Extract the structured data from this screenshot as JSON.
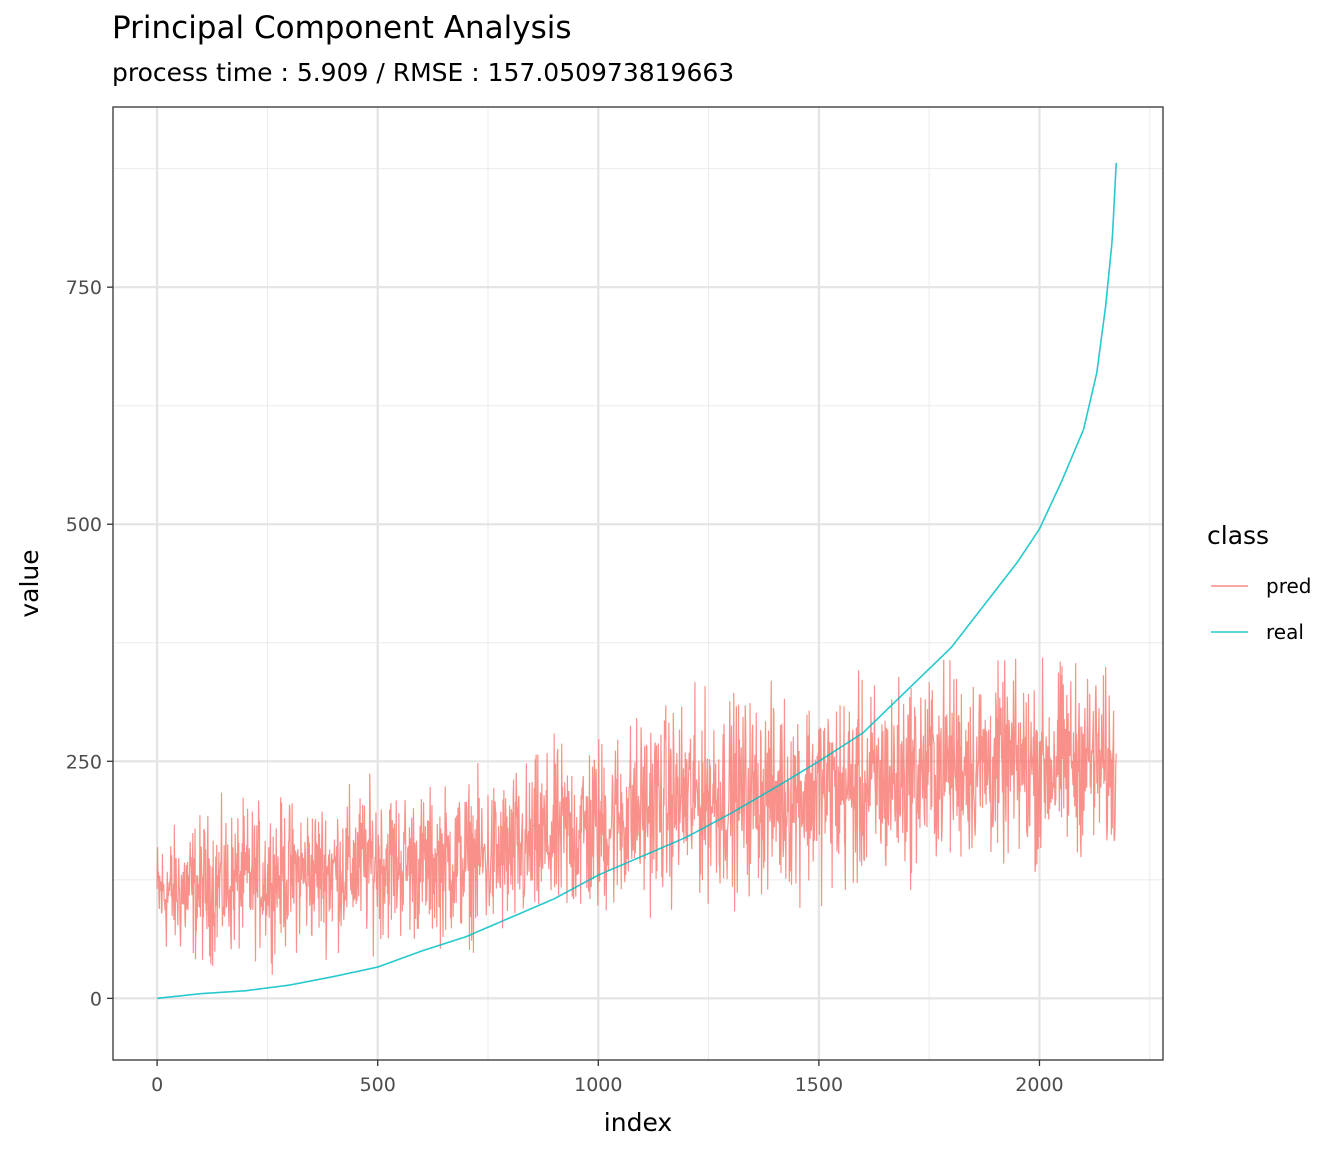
{
  "chart_data": {
    "type": "line",
    "title": "Principal Component Analysis",
    "subtitle": "process time : 5.909 / RMSE : 157.050973819663",
    "xlabel": "index",
    "ylabel": "value",
    "xlim": [
      -100,
      2280
    ],
    "ylim": [
      -65,
      940
    ],
    "x_ticks": [
      0,
      500,
      1000,
      1500,
      2000
    ],
    "x_tick_labels": [
      "0",
      "500",
      "1000",
      "1500",
      "2000"
    ],
    "y_ticks": [
      0,
      250,
      500,
      750
    ],
    "y_tick_labels": [
      "0",
      "250",
      "500",
      "750"
    ],
    "grid": true,
    "legend": {
      "title": "class",
      "position": "right",
      "entries": [
        "pred",
        "real"
      ]
    },
    "series": [
      {
        "name": "pred",
        "color": "#F8766D",
        "style": "noisy",
        "x": [
          0,
          100,
          200,
          300,
          400,
          500,
          600,
          700,
          800,
          900,
          1000,
          1100,
          1200,
          1300,
          1400,
          1500,
          1600,
          1700,
          1800,
          1900,
          2000,
          2100,
          2175
        ],
        "values": [
          110,
          115,
          125,
          130,
          135,
          145,
          140,
          145,
          150,
          170,
          180,
          200,
          210,
          215,
          215,
          220,
          220,
          235,
          250,
          245,
          245,
          255,
          240
        ],
        "noise_amplitude": [
          60,
          75,
          75,
          75,
          75,
          80,
          75,
          80,
          85,
          90,
          95,
          95,
          100,
          100,
          100,
          100,
          105,
          100,
          100,
          95,
          100,
          95,
          90
        ],
        "count": 2175
      },
      {
        "name": "real",
        "color": "#00BFC4",
        "style": "line",
        "x": [
          0,
          100,
          200,
          300,
          400,
          500,
          600,
          700,
          800,
          900,
          1000,
          1100,
          1200,
          1300,
          1400,
          1500,
          1600,
          1700,
          1800,
          1850,
          1900,
          1950,
          2000,
          2050,
          2100,
          2130,
          2150,
          2165,
          2175
        ],
        "values": [
          0,
          5,
          8,
          14,
          23,
          33,
          50,
          65,
          85,
          105,
          130,
          150,
          170,
          195,
          222,
          250,
          280,
          325,
          370,
          400,
          430,
          460,
          495,
          545,
          600,
          660,
          730,
          800,
          890
        ]
      }
    ]
  }
}
